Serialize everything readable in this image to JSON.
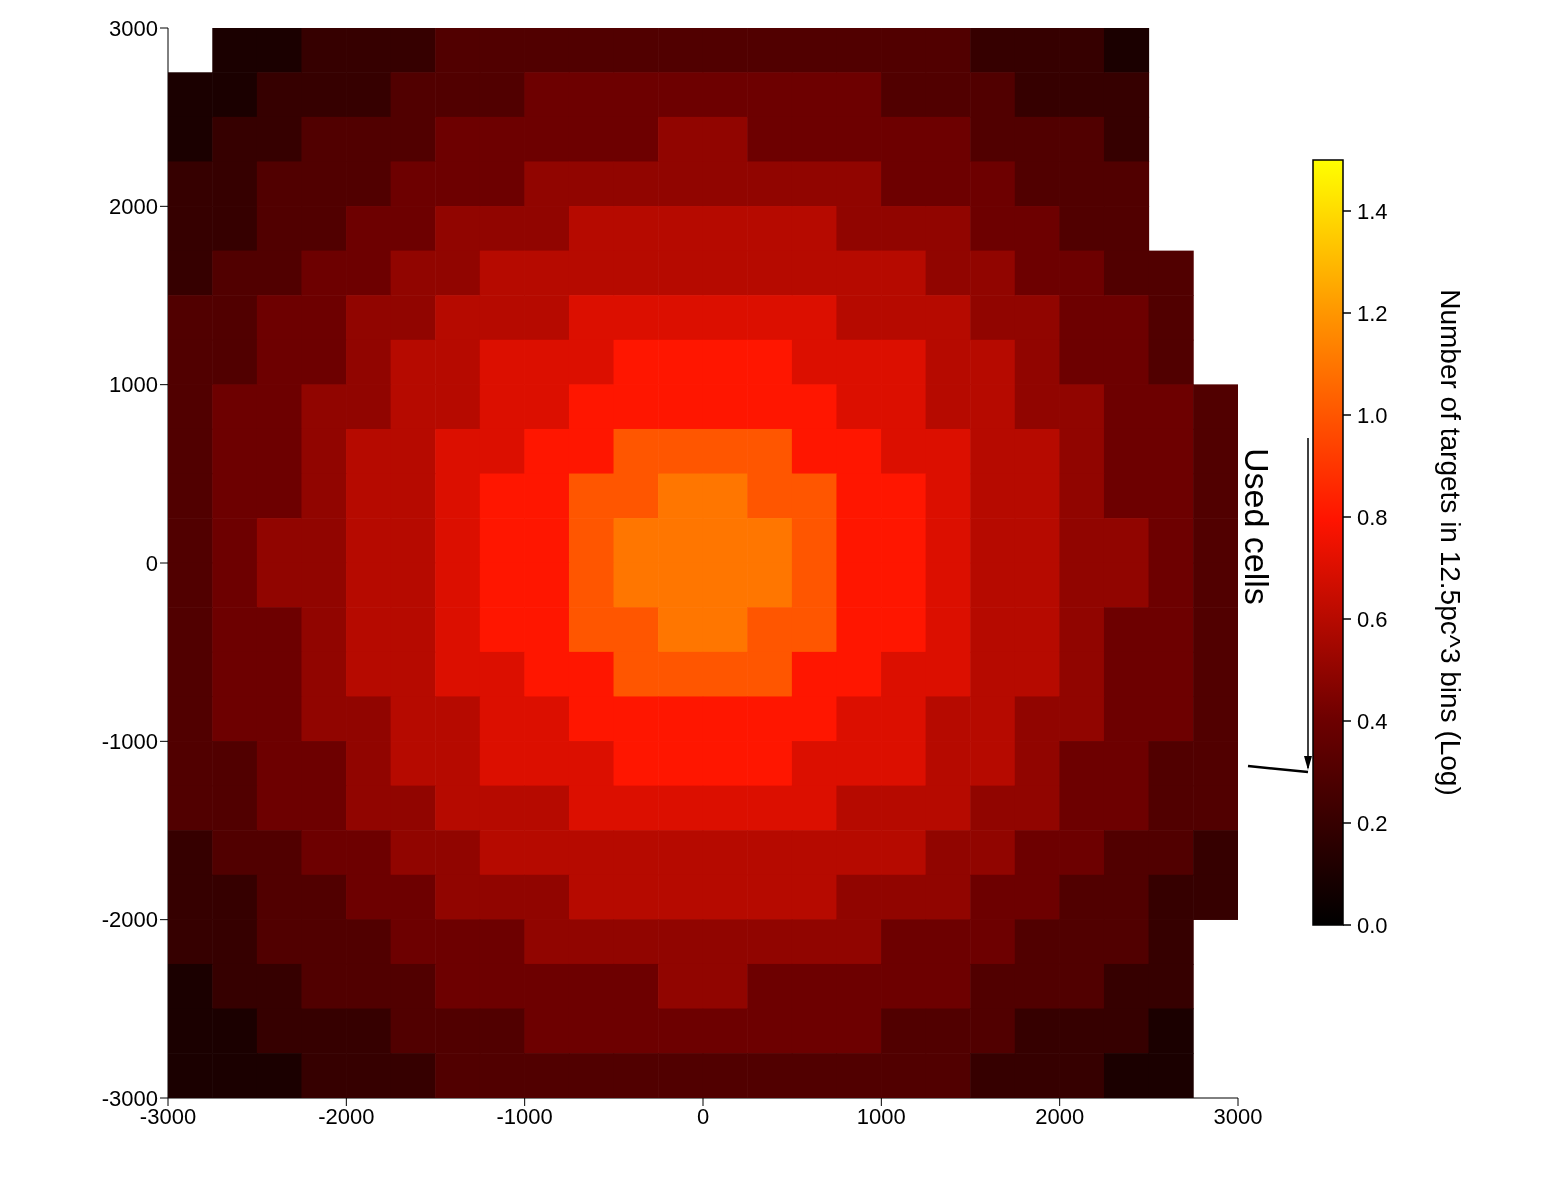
{
  "chart_data": {
    "type": "heatmap",
    "clabel": "Number of targets in 12.5pc^3 bins (Log)",
    "annotations": [
      "Used cells"
    ],
    "xlim": [
      -3000,
      3000
    ],
    "ylim": [
      -3000,
      3000
    ],
    "xticks": [
      -3000,
      -2000,
      -1000,
      0,
      1000,
      2000,
      3000
    ],
    "yticks": [
      -3000,
      -2000,
      -1000,
      0,
      1000,
      2000,
      3000
    ],
    "clim": [
      0,
      1.5
    ],
    "cticks": [
      {
        "value": 0,
        "label": "0.0"
      },
      0.2,
      0.4,
      0.6,
      0.8,
      {
        "value": 1,
        "label": "1.0"
      },
      1.2,
      1.4
    ],
    "cells": [
      [
        null,
        0.1,
        0.1,
        0.2,
        0.2,
        0.2,
        0.3,
        0.3,
        0.3,
        0.3,
        0.3,
        0.3,
        0.3,
        0.3,
        0.3,
        0.3,
        0.3,
        0.3,
        0.2,
        0.2,
        0.2,
        0.1,
        null,
        null
      ],
      [
        0.1,
        0.1,
        0.2,
        0.2,
        0.2,
        0.3,
        0.3,
        0.3,
        0.4,
        0.4,
        0.4,
        0.4,
        0.4,
        0.4,
        0.4,
        0.4,
        0.3,
        0.3,
        0.3,
        0.2,
        0.2,
        0.2,
        null,
        null
      ],
      [
        0.1,
        0.2,
        0.2,
        0.3,
        0.3,
        0.3,
        0.4,
        0.4,
        0.4,
        0.4,
        0.4,
        0.5,
        0.5,
        0.4,
        0.4,
        0.4,
        0.4,
        0.4,
        0.3,
        0.3,
        0.3,
        0.2,
        null,
        null
      ],
      [
        0.2,
        0.2,
        0.3,
        0.3,
        0.3,
        0.4,
        0.4,
        0.4,
        0.5,
        0.5,
        0.5,
        0.5,
        0.5,
        0.5,
        0.5,
        0.5,
        0.4,
        0.4,
        0.4,
        0.3,
        0.3,
        0.3,
        null,
        null
      ],
      [
        0.2,
        0.2,
        0.3,
        0.3,
        0.4,
        0.4,
        0.5,
        0.5,
        0.5,
        0.6,
        0.6,
        0.6,
        0.6,
        0.6,
        0.6,
        0.5,
        0.5,
        0.5,
        0.4,
        0.4,
        0.3,
        0.3,
        null,
        null
      ],
      [
        0.2,
        0.3,
        0.3,
        0.4,
        0.4,
        0.5,
        0.5,
        0.6,
        0.6,
        0.6,
        0.6,
        0.6,
        0.6,
        0.6,
        0.6,
        0.6,
        0.6,
        0.5,
        0.5,
        0.4,
        0.4,
        0.3,
        0.3,
        null
      ],
      [
        0.3,
        0.3,
        0.4,
        0.4,
        0.5,
        0.5,
        0.6,
        0.6,
        0.6,
        0.7,
        0.7,
        0.7,
        0.7,
        0.7,
        0.7,
        0.6,
        0.6,
        0.6,
        0.5,
        0.5,
        0.4,
        0.4,
        0.3,
        null
      ],
      [
        0.3,
        0.3,
        0.4,
        0.4,
        0.5,
        0.6,
        0.6,
        0.7,
        0.7,
        0.7,
        0.8,
        0.8,
        0.8,
        0.8,
        0.7,
        0.7,
        0.7,
        0.6,
        0.6,
        0.5,
        0.4,
        0.4,
        0.3,
        null
      ],
      [
        0.3,
        0.4,
        0.4,
        0.5,
        0.5,
        0.6,
        0.6,
        0.7,
        0.7,
        0.8,
        0.8,
        0.8,
        0.8,
        0.8,
        0.8,
        0.7,
        0.7,
        0.6,
        0.6,
        0.5,
        0.5,
        0.4,
        0.4,
        0.3
      ],
      [
        0.3,
        0.4,
        0.4,
        0.5,
        0.6,
        0.6,
        0.7,
        0.7,
        0.8,
        0.8,
        1.0,
        1.0,
        1.0,
        1.0,
        0.8,
        0.8,
        0.7,
        0.7,
        0.6,
        0.6,
        0.5,
        0.4,
        0.4,
        0.3
      ],
      [
        0.3,
        0.4,
        0.4,
        0.5,
        0.6,
        0.6,
        0.7,
        0.8,
        0.8,
        1.0,
        1.0,
        1.1,
        1.1,
        1.0,
        1.0,
        0.8,
        0.8,
        0.7,
        0.6,
        0.6,
        0.5,
        0.4,
        0.4,
        0.3
      ],
      [
        0.3,
        0.4,
        0.5,
        0.5,
        0.6,
        0.6,
        0.7,
        0.8,
        0.8,
        1.0,
        1.1,
        1.1,
        1.1,
        1.1,
        1.0,
        0.8,
        0.8,
        0.7,
        0.6,
        0.6,
        0.5,
        0.5,
        0.4,
        0.3
      ],
      [
        0.3,
        0.4,
        0.5,
        0.5,
        0.6,
        0.6,
        0.7,
        0.8,
        0.8,
        1.0,
        1.1,
        1.1,
        1.1,
        1.1,
        1.0,
        0.8,
        0.8,
        0.7,
        0.6,
        0.6,
        0.5,
        0.5,
        0.4,
        0.3
      ],
      [
        0.3,
        0.4,
        0.4,
        0.5,
        0.6,
        0.6,
        0.7,
        0.8,
        0.8,
        1.0,
        1.0,
        1.1,
        1.1,
        1.0,
        1.0,
        0.8,
        0.8,
        0.7,
        0.6,
        0.6,
        0.5,
        0.4,
        0.4,
        0.3
      ],
      [
        0.3,
        0.4,
        0.4,
        0.5,
        0.6,
        0.6,
        0.7,
        0.7,
        0.8,
        0.8,
        1.0,
        1.0,
        1.0,
        1.0,
        0.8,
        0.8,
        0.7,
        0.7,
        0.6,
        0.6,
        0.5,
        0.4,
        0.4,
        0.3
      ],
      [
        0.3,
        0.4,
        0.4,
        0.5,
        0.5,
        0.6,
        0.6,
        0.7,
        0.7,
        0.8,
        0.8,
        0.8,
        0.8,
        0.8,
        0.8,
        0.7,
        0.7,
        0.6,
        0.6,
        0.5,
        0.5,
        0.4,
        0.4,
        0.3
      ],
      [
        0.3,
        0.3,
        0.4,
        0.4,
        0.5,
        0.6,
        0.6,
        0.7,
        0.7,
        0.7,
        0.8,
        0.8,
        0.8,
        0.8,
        0.7,
        0.7,
        0.7,
        0.6,
        0.6,
        0.5,
        0.4,
        0.4,
        0.3,
        0.3
      ],
      [
        0.3,
        0.3,
        0.4,
        0.4,
        0.5,
        0.5,
        0.6,
        0.6,
        0.6,
        0.7,
        0.7,
        0.7,
        0.7,
        0.7,
        0.7,
        0.6,
        0.6,
        0.6,
        0.5,
        0.5,
        0.4,
        0.4,
        0.3,
        0.3
      ],
      [
        0.2,
        0.3,
        0.3,
        0.4,
        0.4,
        0.5,
        0.5,
        0.6,
        0.6,
        0.6,
        0.6,
        0.6,
        0.6,
        0.6,
        0.6,
        0.6,
        0.6,
        0.5,
        0.5,
        0.4,
        0.4,
        0.3,
        0.3,
        0.2
      ],
      [
        0.2,
        0.2,
        0.3,
        0.3,
        0.4,
        0.4,
        0.5,
        0.5,
        0.5,
        0.6,
        0.6,
        0.6,
        0.6,
        0.6,
        0.6,
        0.5,
        0.5,
        0.5,
        0.4,
        0.4,
        0.3,
        0.3,
        0.2,
        0.2
      ],
      [
        0.2,
        0.2,
        0.3,
        0.3,
        0.3,
        0.4,
        0.4,
        0.4,
        0.5,
        0.5,
        0.5,
        0.5,
        0.5,
        0.5,
        0.5,
        0.5,
        0.4,
        0.4,
        0.4,
        0.3,
        0.3,
        0.3,
        0.2,
        null
      ],
      [
        0.1,
        0.2,
        0.2,
        0.3,
        0.3,
        0.3,
        0.4,
        0.4,
        0.4,
        0.4,
        0.4,
        0.5,
        0.5,
        0.4,
        0.4,
        0.4,
        0.4,
        0.4,
        0.3,
        0.3,
        0.3,
        0.2,
        0.2,
        null
      ],
      [
        0.1,
        0.1,
        0.2,
        0.2,
        0.2,
        0.3,
        0.3,
        0.3,
        0.4,
        0.4,
        0.4,
        0.4,
        0.4,
        0.4,
        0.4,
        0.4,
        0.3,
        0.3,
        0.3,
        0.2,
        0.2,
        0.2,
        0.1,
        null
      ],
      [
        0.1,
        0.1,
        0.1,
        0.2,
        0.2,
        0.2,
        0.3,
        0.3,
        0.3,
        0.3,
        0.3,
        0.3,
        0.3,
        0.3,
        0.3,
        0.3,
        0.3,
        0.3,
        0.2,
        0.2,
        0.2,
        0.1,
        0.1,
        null
      ]
    ]
  }
}
